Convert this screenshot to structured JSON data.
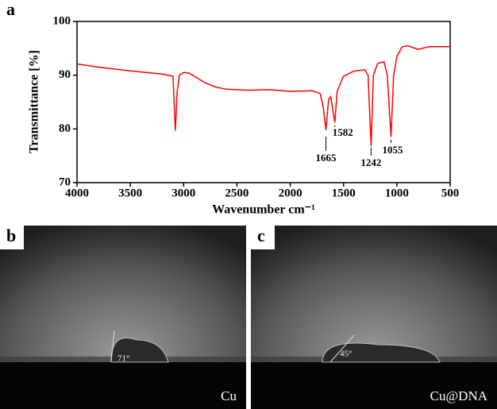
{
  "chart_data": {
    "type": "line",
    "panel_label": "a",
    "x_label": "Wavenumber cm⁻¹",
    "y_label": "Transmittance [%]",
    "x": [
      4000,
      3800,
      3500,
      3200,
      3100,
      3077,
      3060,
      3040,
      3000,
      2950,
      2900,
      2800,
      2700,
      2600,
      2400,
      2200,
      2000,
      1800,
      1720,
      1690,
      1665,
      1640,
      1620,
      1582,
      1560,
      1500,
      1400,
      1300,
      1270,
      1242,
      1220,
      1180,
      1120,
      1090,
      1055,
      1030,
      1000,
      950,
      900,
      800,
      700,
      500
    ],
    "values": [
      92.1,
      91.5,
      90.8,
      90.2,
      89.8,
      79.7,
      87,
      90,
      90.5,
      90.4,
      89.8,
      88.6,
      87.8,
      87.4,
      87.2,
      87.3,
      87.0,
      87.1,
      86.6,
      84,
      79.8,
      85.5,
      86,
      81.2,
      87,
      89.8,
      90.8,
      91,
      90,
      76.8,
      90,
      92.2,
      92.5,
      90,
      78.5,
      90,
      93.5,
      95.3,
      95.5,
      94.8,
      95.3,
      95.3
    ],
    "color": "#ff0000",
    "xlim": [
      4000,
      500
    ],
    "xticks": [
      4000,
      3500,
      3000,
      2500,
      2000,
      1500,
      1000,
      500
    ],
    "ylim": [
      70,
      100
    ],
    "yticks": [
      70,
      80,
      90,
      100
    ],
    "annotations": [
      1665,
      1582,
      1242,
      1055
    ]
  },
  "photos": [
    {
      "label": "b",
      "caption": "Cu",
      "angle": "71°"
    },
    {
      "label": "c",
      "caption": "Cu@DNA",
      "angle": "45°"
    }
  ]
}
